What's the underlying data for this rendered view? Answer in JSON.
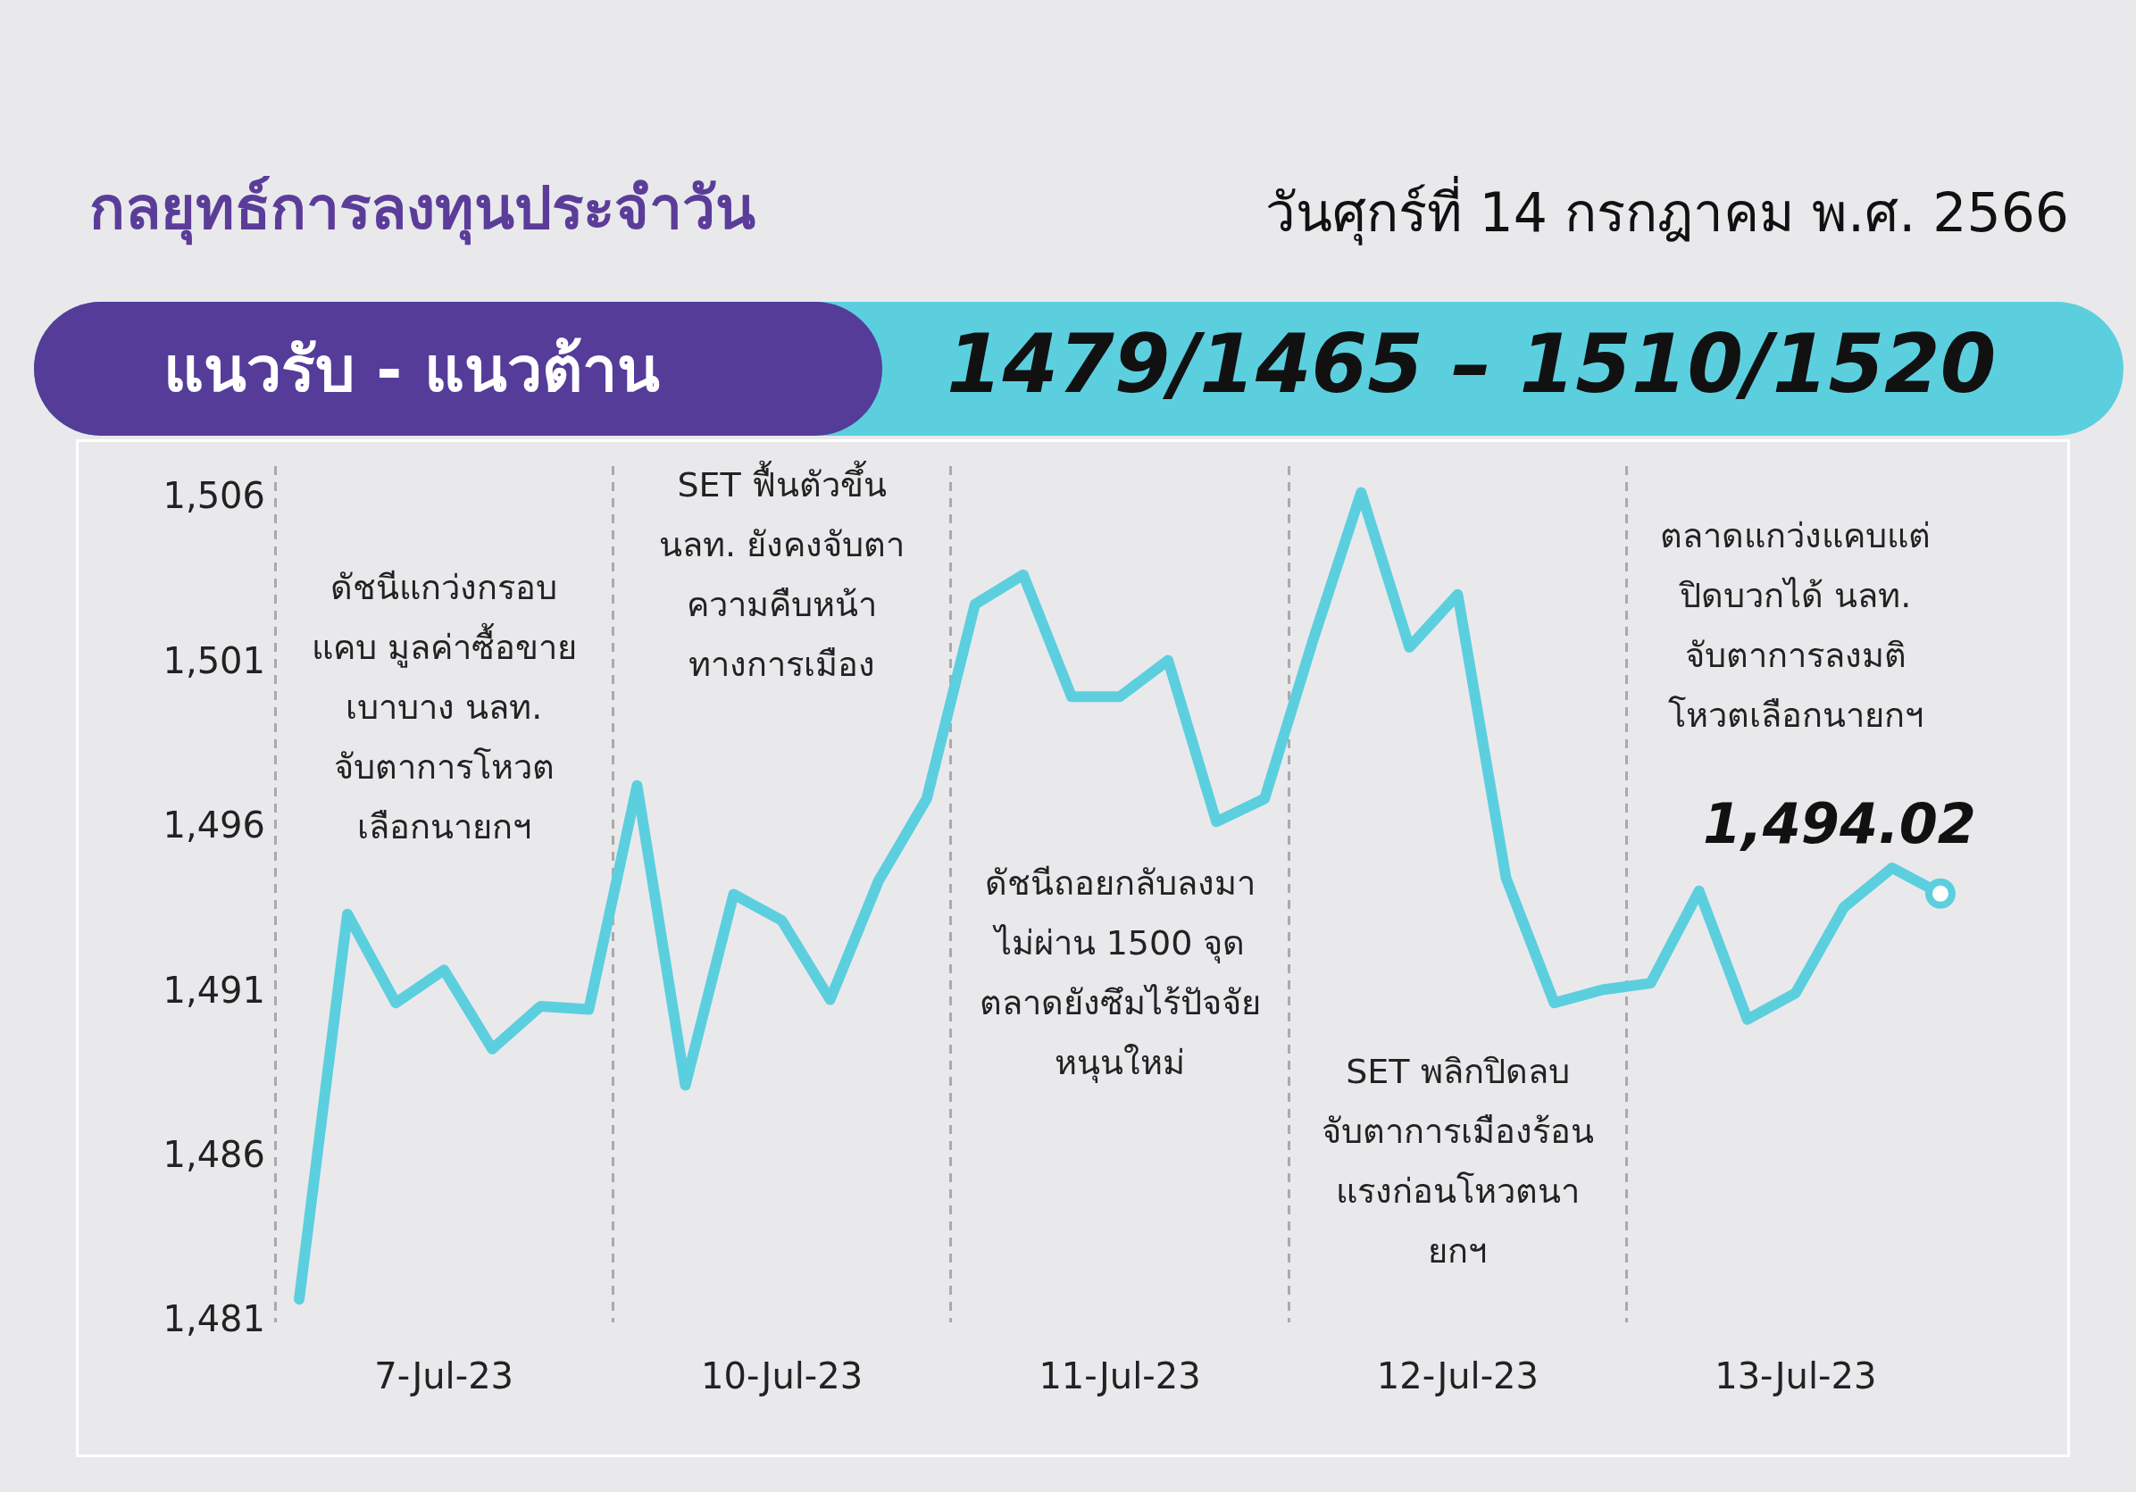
{
  "chart_data": {
    "type": "line",
    "title": "กลยุทธ์การลงทุนประจำวัน",
    "subtitle": "วันศุกร์ที่ 14 กรกฎาคม พ.ศ. 2566",
    "annotations": [
      "แนวรับ - แนวต้าน",
      "1479/1465 – 1510/1520",
      "ดัชนีแกว่งกรอบแคบ มูลค่าซื้อขายเบาบาง นลท. จับตาการโหวตเลือกนายกฯ",
      "SET ฟื้นตัวขึ้น นลท. ยังคงจับตาความคืบหน้าทางการเมือง",
      "ดัชนีถอยกลับลงมาไม่ผ่าน 1500 จุด ตลาดยังซึมไร้ปัจจัยหนุนใหม่",
      "SET พลิกปิดลบ จับตาการเมืองร้อนแรงก่อนโหวตนายกฯ",
      "ตลาดแกว่งแคบแต่ปิดบวกได้ นลท. จับตาการลงมติโหวตเลือกนายกฯ"
    ],
    "categories": [
      null,
      null,
      null,
      "7-Jul-23",
      null,
      null,
      null,
      null,
      null,
      null,
      "10-Jul-23",
      null,
      null,
      null,
      null,
      null,
      null,
      "11-Jul-23",
      null,
      null,
      null,
      null,
      null,
      null,
      "12-Jul-23",
      null,
      null,
      null,
      null,
      null,
      null,
      "13-Jul-23",
      null,
      null,
      null
    ],
    "values": [
      1481.7,
      1493.4,
      1490.7,
      1491.7,
      1489.3,
      1490.6,
      1490.5,
      1497.3,
      1488.2,
      1494.0,
      1493.2,
      1490.8,
      1494.4,
      1496.9,
      1502.8,
      1503.7,
      1500.0,
      1500.0,
      1501.1,
      1496.2,
      1496.9,
      1501.7,
      1506.2,
      1501.5,
      1503.1,
      1494.5,
      1490.7,
      1491.1,
      1491.3,
      1494.1,
      1490.2,
      1491.0,
      1493.6,
      1494.8,
      1494.02
    ],
    "value_labels": [
      null,
      null,
      null,
      null,
      null,
      null,
      null,
      null,
      null,
      null,
      null,
      null,
      null,
      null,
      null,
      null,
      null,
      null,
      null,
      null,
      null,
      null,
      null,
      null,
      null,
      null,
      null,
      null,
      null,
      null,
      null,
      null,
      null,
      null,
      "1,494.02"
    ],
    "color": "#5ccfdf",
    "ylim": [
      1481,
      1507
    ],
    "yticks": [
      {
        "value": 1481,
        "label": "1,481"
      },
      {
        "value": 1486,
        "label": "1,486"
      },
      {
        "value": 1491,
        "label": "1,491"
      },
      {
        "value": 1496,
        "label": "1,496"
      },
      {
        "value": 1501,
        "label": "1,501"
      },
      {
        "value": 1506,
        "label": "1,506"
      }
    ],
    "grid": "x",
    "legend": false,
    "line_style": "solid"
  }
}
